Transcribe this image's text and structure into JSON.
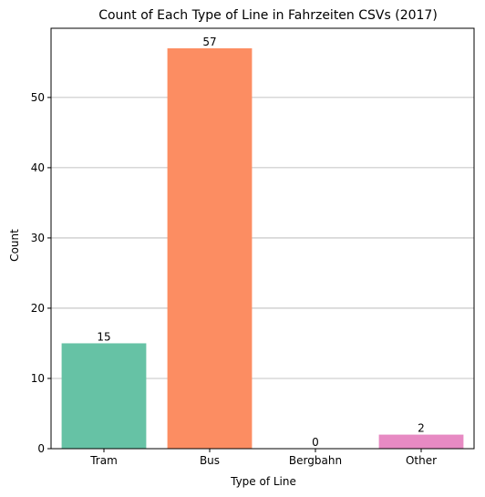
{
  "chart_data": {
    "type": "bar",
    "title": "Count of Each Type of Line in Fahrzeiten CSVs (2017)",
    "xlabel": "Type of Line",
    "ylabel": "Count",
    "categories": [
      "Tram",
      "Bus",
      "Bergbahn",
      "Other"
    ],
    "values": [
      15,
      57,
      0,
      2
    ],
    "colors": [
      "#66c2a5",
      "#fc8d62",
      "#8da0cb",
      "#e78ac3"
    ],
    "ylim": [
      0,
      59.85
    ],
    "yticks": [
      0,
      10,
      20,
      30,
      40,
      50
    ],
    "grid": "y",
    "grid_color": "#b0b0b0",
    "data_labels": true
  }
}
